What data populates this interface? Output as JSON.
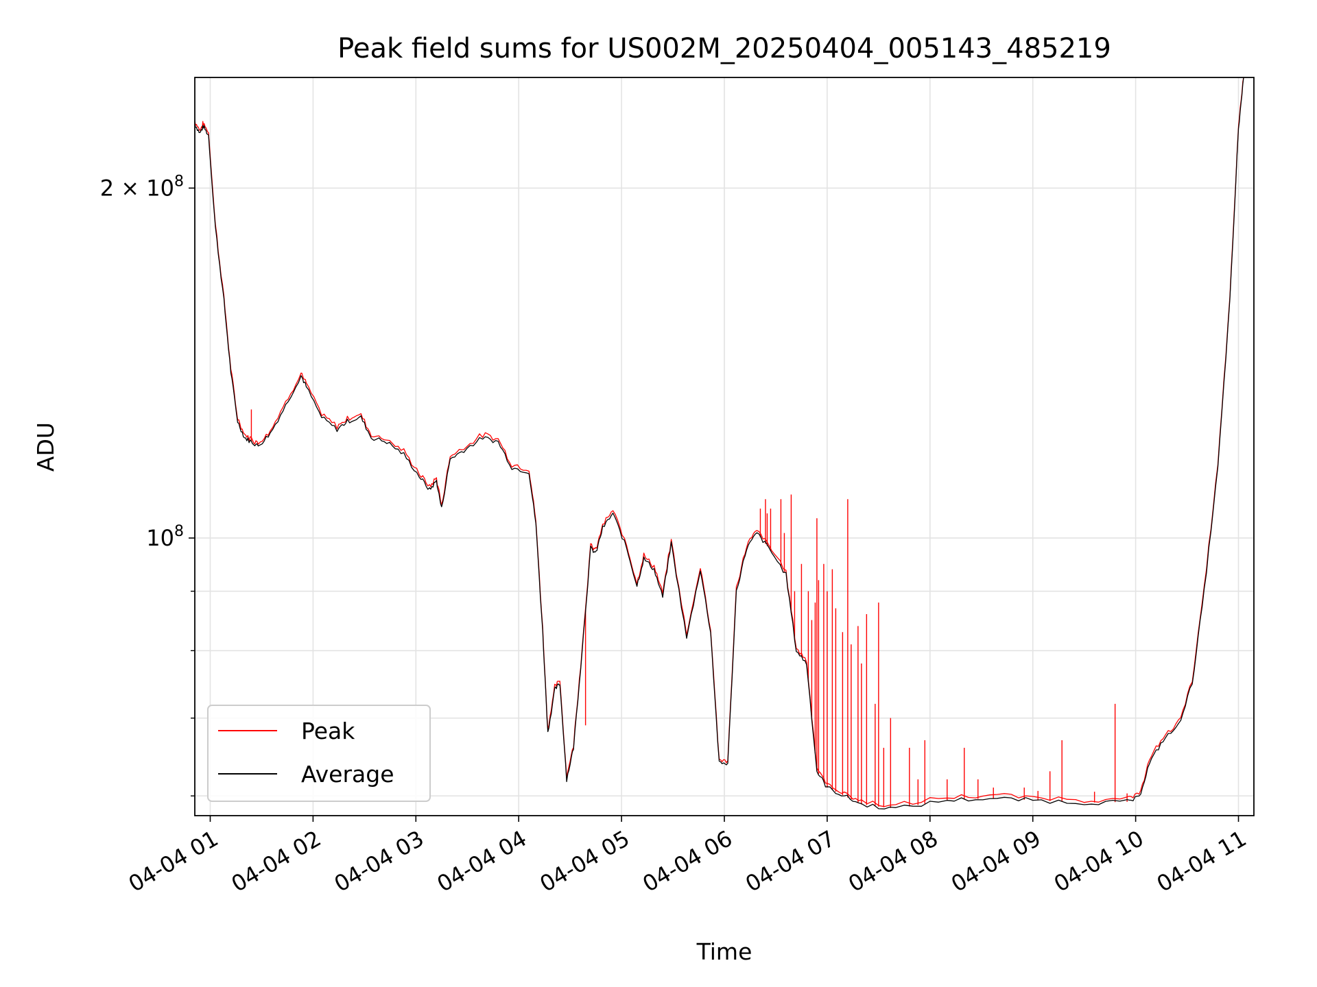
{
  "chart_data": {
    "type": "line",
    "title": "Peak field sums for US002M_20250404_005143_485219",
    "xlabel": "Time",
    "ylabel": "ADU",
    "y_scale": "log",
    "ylim": [
      57700000,
      249000000
    ],
    "xlim": [
      "2025-04-04 00:51",
      "2025-04-04 11:09"
    ],
    "grid": true,
    "legend_position": "lower-left",
    "x_ticks": [
      "04-04 01",
      "04-04 02",
      "04-04 03",
      "04-04 04",
      "04-04 05",
      "04-04 06",
      "04-04 07",
      "04-04 08",
      "04-04 09",
      "04-04 10",
      "04-04 11"
    ],
    "y_tick_labels": [
      {
        "value": 100000000,
        "label": "10⁸",
        "mantissa": "",
        "exponent": "8"
      },
      {
        "value": 200000000,
        "label": "2 × 10⁸",
        "mantissa": "2 × ",
        "exponent": "8"
      }
    ],
    "series": [
      {
        "name": "Average",
        "color": "#000000",
        "points": [
          [
            "2025-04-04 00:51",
            227000000
          ],
          [
            "2025-04-04 00:54",
            223000000
          ],
          [
            "2025-04-04 00:56",
            226000000
          ],
          [
            "2025-04-04 00:59",
            222000000
          ],
          [
            "2025-04-04 01:03",
            185000000
          ],
          [
            "2025-04-04 01:08",
            160000000
          ],
          [
            "2025-04-04 01:12",
            139000000
          ],
          [
            "2025-04-04 01:16",
            126000000
          ],
          [
            "2025-04-04 01:20",
            122000000
          ],
          [
            "2025-04-04 01:24",
            121000000
          ],
          [
            "2025-04-04 01:28",
            120000000
          ],
          [
            "2025-04-04 01:35",
            123000000
          ],
          [
            "2025-04-04 01:44",
            130000000
          ],
          [
            "2025-04-04 01:53",
            138000000
          ],
          [
            "2025-04-04 01:56",
            135000000
          ],
          [
            "2025-04-04 02:05",
            127000000
          ],
          [
            "2025-04-04 02:14",
            124000000
          ],
          [
            "2025-04-04 02:20",
            126000000
          ],
          [
            "2025-04-04 02:28",
            127000000
          ],
          [
            "2025-04-04 02:34",
            122000000
          ],
          [
            "2025-04-04 02:43",
            121000000
          ],
          [
            "2025-04-04 02:53",
            118000000
          ],
          [
            "2025-04-04 03:02",
            113000000
          ],
          [
            "2025-04-04 03:08",
            110000000
          ],
          [
            "2025-04-04 03:12",
            112000000
          ],
          [
            "2025-04-04 03:15",
            106000000
          ],
          [
            "2025-04-04 03:20",
            117000000
          ],
          [
            "2025-04-04 03:28",
            119000000
          ],
          [
            "2025-04-04 03:39",
            122000000
          ],
          [
            "2025-04-04 03:48",
            121000000
          ],
          [
            "2025-04-04 03:56",
            115000000
          ],
          [
            "2025-04-04 04:06",
            114000000
          ],
          [
            "2025-04-04 04:10",
            103000000
          ],
          [
            "2025-04-04 04:14",
            83000000
          ],
          [
            "2025-04-04 04:17",
            68000000
          ],
          [
            "2025-04-04 04:21",
            74000000
          ],
          [
            "2025-04-04 04:24",
            75000000
          ],
          [
            "2025-04-04 04:28",
            62000000
          ],
          [
            "2025-04-04 04:32",
            66000000
          ],
          [
            "2025-04-04 04:37",
            80000000
          ],
          [
            "2025-04-04 04:42",
            98000000
          ],
          [
            "2025-04-04 04:45",
            97000000
          ],
          [
            "2025-04-04 04:49",
            102000000
          ],
          [
            "2025-04-04 04:55",
            105000000
          ],
          [
            "2025-04-04 05:03",
            98000000
          ],
          [
            "2025-04-04 05:09",
            91000000
          ],
          [
            "2025-04-04 05:13",
            96000000
          ],
          [
            "2025-04-04 05:19",
            94000000
          ],
          [
            "2025-04-04 05:24",
            89000000
          ],
          [
            "2025-04-04 05:29",
            99000000
          ],
          [
            "2025-04-04 05:38",
            82000000
          ],
          [
            "2025-04-04 05:46",
            94000000
          ],
          [
            "2025-04-04 05:52",
            83000000
          ],
          [
            "2025-04-04 05:57",
            64000000
          ],
          [
            "2025-04-04 06:02",
            64000000
          ],
          [
            "2025-04-04 06:07",
            90000000
          ],
          [
            "2025-04-04 06:13",
            98000000
          ],
          [
            "2025-04-04 06:19",
            101000000
          ],
          [
            "2025-04-04 06:26",
            98000000
          ],
          [
            "2025-04-04 06:36",
            93000000
          ],
          [
            "2025-04-04 06:42",
            80000000
          ],
          [
            "2025-04-04 06:48",
            78000000
          ],
          [
            "2025-04-04 06:54",
            63000000
          ],
          [
            "2025-04-04 07:00",
            61000000
          ],
          [
            "2025-04-04 07:10",
            60000000
          ],
          [
            "2025-04-04 07:20",
            59000000
          ],
          [
            "2025-04-04 07:40",
            58500000
          ],
          [
            "2025-04-04 08:10",
            59500000
          ],
          [
            "2025-04-04 08:35",
            59700000
          ],
          [
            "2025-04-04 09:00",
            59500000
          ],
          [
            "2025-04-04 09:30",
            59200000
          ],
          [
            "2025-04-04 09:55",
            59300000
          ],
          [
            "2025-04-04 10:02",
            59800000
          ],
          [
            "2025-04-04 10:08",
            64000000
          ],
          [
            "2025-04-04 10:16",
            67000000
          ],
          [
            "2025-04-04 10:25",
            69000000
          ],
          [
            "2025-04-04 10:33",
            75000000
          ],
          [
            "2025-04-04 10:40",
            90000000
          ],
          [
            "2025-04-04 10:48",
            115000000
          ],
          [
            "2025-04-04 10:55",
            160000000
          ],
          [
            "2025-04-04 11:00",
            225000000
          ],
          [
            "2025-04-04 11:03",
            249000000
          ]
        ]
      },
      {
        "name": "Peak",
        "color": "#ff0000",
        "spikes": [
          [
            "2025-04-04 01:24",
            129000000
          ],
          [
            "2025-04-04 04:39",
            69000000
          ],
          [
            "2025-04-04 06:21",
            106000000
          ],
          [
            "2025-04-04 06:24",
            108000000
          ],
          [
            "2025-04-04 06:25",
            105000000
          ],
          [
            "2025-04-04 06:27",
            106000000
          ],
          [
            "2025-04-04 06:33",
            108000000
          ],
          [
            "2025-04-04 06:35",
            101000000
          ],
          [
            "2025-04-04 06:39",
            109000000
          ],
          [
            "2025-04-04 06:41",
            90000000
          ],
          [
            "2025-04-04 06:45",
            95000000
          ],
          [
            "2025-04-04 06:49",
            90000000
          ],
          [
            "2025-04-04 06:51",
            85000000
          ],
          [
            "2025-04-04 06:53",
            88000000
          ],
          [
            "2025-04-04 06:54",
            104000000
          ],
          [
            "2025-04-04 06:55",
            92000000
          ],
          [
            "2025-04-04 06:58",
            95000000
          ],
          [
            "2025-04-04 07:00",
            90000000
          ],
          [
            "2025-04-04 07:03",
            94000000
          ],
          [
            "2025-04-04 07:05",
            87000000
          ],
          [
            "2025-04-04 07:09",
            83000000
          ],
          [
            "2025-04-04 07:12",
            108000000
          ],
          [
            "2025-04-04 07:14",
            81000000
          ],
          [
            "2025-04-04 07:18",
            84000000
          ],
          [
            "2025-04-04 07:20",
            78000000
          ],
          [
            "2025-04-04 07:23",
            86000000
          ],
          [
            "2025-04-04 07:28",
            72000000
          ],
          [
            "2025-04-04 07:30",
            88000000
          ],
          [
            "2025-04-04 07:33",
            66000000
          ],
          [
            "2025-04-04 07:37",
            70000000
          ],
          [
            "2025-04-04 07:48",
            66000000
          ],
          [
            "2025-04-04 07:53",
            62000000
          ],
          [
            "2025-04-04 07:57",
            67000000
          ],
          [
            "2025-04-04 08:10",
            62000000
          ],
          [
            "2025-04-04 08:20",
            66000000
          ],
          [
            "2025-04-04 08:28",
            62000000
          ],
          [
            "2025-04-04 08:37",
            61000000
          ],
          [
            "2025-04-04 08:55",
            61000000
          ],
          [
            "2025-04-04 09:03",
            60600000
          ],
          [
            "2025-04-04 09:10",
            63000000
          ],
          [
            "2025-04-04 09:17",
            67000000
          ],
          [
            "2025-04-04 09:36",
            60500000
          ],
          [
            "2025-04-04 09:48",
            72000000
          ],
          [
            "2025-04-04 09:55",
            60300000
          ]
        ]
      }
    ]
  }
}
